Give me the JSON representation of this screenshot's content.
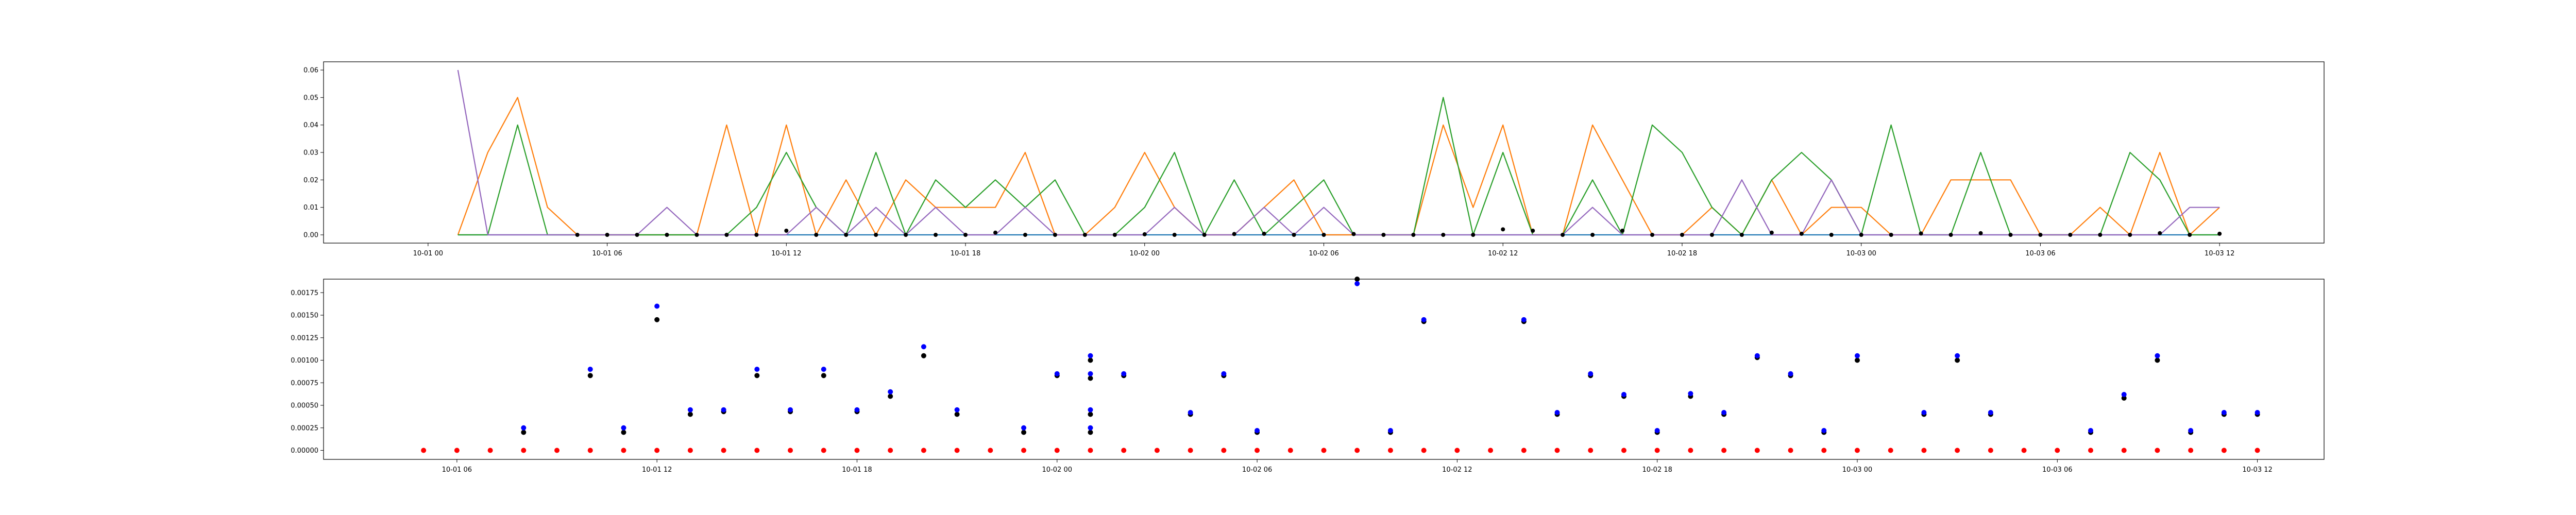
{
  "chart_data": [
    {
      "type": "line",
      "title": "",
      "xlabel": "",
      "ylabel": "",
      "x_format": "MM-DD HH",
      "xlim": [
        "09-30 20:30",
        "10-03 15:30"
      ],
      "ylim": [
        -0.003,
        0.063
      ],
      "grid": false,
      "x_ticks": [
        {
          "label": "10-01 00",
          "t": "10-01 00:00"
        },
        {
          "label": "10-01 06",
          "t": "10-01 06:00"
        },
        {
          "label": "10-01 12",
          "t": "10-01 12:00"
        },
        {
          "label": "10-01 18",
          "t": "10-01 18:00"
        },
        {
          "label": "10-02 00",
          "t": "10-02 00:00"
        },
        {
          "label": "10-02 06",
          "t": "10-02 06:00"
        },
        {
          "label": "10-02 12",
          "t": "10-02 12:00"
        },
        {
          "label": "10-02 18",
          "t": "10-02 18:00"
        },
        {
          "label": "10-03 00",
          "t": "10-03 00:00"
        },
        {
          "label": "10-03 06",
          "t": "10-03 06:00"
        },
        {
          "label": "10-03 12",
          "t": "10-03 12:00"
        }
      ],
      "y_ticks": [
        {
          "label": "0.00",
          "v": 0.0
        },
        {
          "label": "0.01",
          "v": 0.01
        },
        {
          "label": "0.02",
          "v": 0.02
        },
        {
          "label": "0.03",
          "v": 0.03
        },
        {
          "label": "0.04",
          "v": 0.04
        },
        {
          "label": "0.05",
          "v": 0.05
        },
        {
          "label": "0.06",
          "v": 0.06
        }
      ],
      "x": [
        "10-01 01:00",
        "10-01 02:00",
        "10-01 03:00",
        "10-01 04:00",
        "10-01 05:00",
        "10-01 06:00",
        "10-01 07:00",
        "10-01 08:00",
        "10-01 09:00",
        "10-01 10:00",
        "10-01 11:00",
        "10-01 12:00",
        "10-01 13:00",
        "10-01 14:00",
        "10-01 15:00",
        "10-01 16:00",
        "10-01 17:00",
        "10-01 18:00",
        "10-01 19:00",
        "10-01 20:00",
        "10-01 21:00",
        "10-01 22:00",
        "10-01 23:00",
        "10-02 00:00",
        "10-02 01:00",
        "10-02 02:00",
        "10-02 03:00",
        "10-02 04:00",
        "10-02 05:00",
        "10-02 06:00",
        "10-02 07:00",
        "10-02 08:00",
        "10-02 09:00",
        "10-02 10:00",
        "10-02 11:00",
        "10-02 12:00",
        "10-02 13:00",
        "10-02 14:00",
        "10-02 15:00",
        "10-02 16:00",
        "10-02 17:00",
        "10-02 18:00",
        "10-02 19:00",
        "10-02 20:00",
        "10-02 21:00",
        "10-02 22:00",
        "10-02 23:00",
        "10-03 00:00",
        "10-03 01:00",
        "10-03 02:00",
        "10-03 03:00",
        "10-03 04:00",
        "10-03 05:00",
        "10-03 06:00",
        "10-03 07:00",
        "10-03 08:00",
        "10-03 09:00",
        "10-03 10:00",
        "10-03 11:00",
        "10-03 12:00"
      ],
      "series": [
        {
          "color": "#1f77b4",
          "kind": "line",
          "values": [
            0,
            0,
            0,
            0,
            0,
            0,
            0,
            0,
            0,
            0,
            0,
            0,
            0,
            0,
            0,
            0,
            0,
            0,
            0,
            0,
            0,
            0,
            0,
            0,
            0,
            0,
            0,
            0,
            0,
            0,
            0,
            0,
            0,
            0,
            0,
            0,
            0,
            0,
            0,
            0,
            0,
            0,
            0,
            0,
            0,
            0,
            0,
            0,
            0,
            0,
            0,
            0,
            0,
            0,
            0,
            0,
            0,
            0,
            0,
            0
          ]
        },
        {
          "color": "#ff7f0e",
          "kind": "line",
          "values": [
            0,
            0.03,
            0.05,
            0.01,
            0,
            0,
            0,
            0,
            0,
            0.04,
            0,
            0.04,
            0,
            0.02,
            0,
            0.02,
            0.01,
            0.01,
            0.01,
            0.03,
            0,
            0,
            0.01,
            0.03,
            0.01,
            0,
            0,
            0.01,
            0.02,
            0,
            0,
            0,
            0,
            0.04,
            0.01,
            0.04,
            0,
            0,
            0.04,
            0.02,
            0,
            0,
            0.01,
            0,
            0.02,
            0,
            0.01,
            0.01,
            0,
            0,
            0.02,
            0.02,
            0.02,
            0,
            0,
            0.01,
            0,
            0.03,
            0,
            0.01
          ]
        },
        {
          "color": "#2ca02c",
          "kind": "line",
          "values": [
            0,
            0,
            0.04,
            0,
            0,
            0,
            0,
            0,
            0,
            0,
            0.01,
            0.03,
            0.01,
            0,
            0.03,
            0,
            0.02,
            0.01,
            0.02,
            0.01,
            0.02,
            0,
            0,
            0.01,
            0.03,
            0,
            0.02,
            0,
            0.01,
            0.02,
            0,
            0,
            0,
            0.05,
            0,
            0.03,
            0,
            0,
            0.02,
            0,
            0.04,
            0.03,
            0.01,
            0,
            0.02,
            0.03,
            0.02,
            0,
            0.04,
            0,
            0,
            0.03,
            0,
            0,
            0,
            0,
            0.03,
            0.02,
            0,
            0
          ]
        },
        {
          "color": "#9467bd",
          "kind": "line",
          "values": [
            0.06,
            0,
            0,
            0,
            0,
            0,
            0,
            0.01,
            0,
            0,
            0,
            0,
            0.01,
            0,
            0.01,
            0,
            0.01,
            0,
            0,
            0.01,
            0,
            0,
            0,
            0,
            0.01,
            0,
            0,
            0.01,
            0,
            0.01,
            0,
            0,
            0,
            0,
            0,
            0,
            0,
            0,
            0.01,
            0,
            0,
            0,
            0,
            0.02,
            0,
            0,
            0.02,
            0,
            0,
            0,
            0,
            0,
            0,
            0,
            0,
            0,
            0,
            0,
            0.01,
            0.01
          ]
        },
        {
          "color": "#000000",
          "kind": "marker",
          "marker_size": 4,
          "x": [
            "10-01 05:00",
            "10-01 06:00",
            "10-01 07:00",
            "10-01 08:00",
            "10-01 09:00",
            "10-01 10:00",
            "10-01 11:00",
            "10-01 12:00",
            "10-01 13:00",
            "10-01 14:00",
            "10-01 15:00",
            "10-01 16:00",
            "10-01 17:00",
            "10-01 18:00",
            "10-01 19:00",
            "10-01 20:00",
            "10-01 21:00",
            "10-01 22:00",
            "10-01 23:00",
            "10-02 00:00",
            "10-02 01:00",
            "10-02 02:00",
            "10-02 03:00",
            "10-02 04:00",
            "10-02 05:00",
            "10-02 06:00",
            "10-02 07:00",
            "10-02 08:00",
            "10-02 09:00",
            "10-02 10:00",
            "10-02 11:00",
            "10-02 12:00",
            "10-02 13:00",
            "10-02 14:00",
            "10-02 15:00",
            "10-02 16:00",
            "10-02 17:00",
            "10-02 18:00",
            "10-02 19:00",
            "10-02 20:00",
            "10-02 21:00",
            "10-02 22:00",
            "10-02 23:00",
            "10-03 00:00",
            "10-03 01:00",
            "10-03 02:00",
            "10-03 03:00",
            "10-03 04:00",
            "10-03 05:00",
            "10-03 06:00",
            "10-03 07:00",
            "10-03 08:00",
            "10-03 09:00",
            "10-03 10:00",
            "10-03 11:00",
            "10-03 12:00"
          ],
          "values": [
            0,
            0,
            0,
            0,
            0,
            0,
            0,
            0.0015,
            0,
            0,
            0,
            0,
            0,
            0,
            0.0008,
            0,
            0,
            0,
            0,
            0.0002,
            0,
            0,
            0.0003,
            0.0004,
            0,
            0,
            0.0003,
            0,
            0,
            0,
            0,
            0.002,
            0.0015,
            0,
            0,
            0.0015,
            0,
            0,
            0,
            0,
            0.0008,
            0.0004,
            0,
            0,
            0,
            0.0005,
            0,
            0.0006,
            0,
            0,
            0,
            0,
            0,
            0.0006,
            0,
            0.0004
          ]
        }
      ]
    },
    {
      "type": "scatter",
      "title": "",
      "xlabel": "",
      "ylabel": "",
      "x_format": "MM-DD HH",
      "xlim": [
        "10-01 02:00",
        "10-03 14:00"
      ],
      "ylim": [
        -0.0001,
        0.0019
      ],
      "grid": false,
      "x_ticks": [
        {
          "label": "10-01 06",
          "t": "10-01 06:00"
        },
        {
          "label": "10-01 12",
          "t": "10-01 12:00"
        },
        {
          "label": "10-01 18",
          "t": "10-01 18:00"
        },
        {
          "label": "10-02 00",
          "t": "10-02 00:00"
        },
        {
          "label": "10-02 06",
          "t": "10-02 06:00"
        },
        {
          "label": "10-02 12",
          "t": "10-02 12:00"
        },
        {
          "label": "10-02 18",
          "t": "10-02 18:00"
        },
        {
          "label": "10-03 00",
          "t": "10-03 00:00"
        },
        {
          "label": "10-03 06",
          "t": "10-03 06:00"
        },
        {
          "label": "10-03 12",
          "t": "10-03 12:00"
        }
      ],
      "y_ticks": [
        {
          "label": "0.00000",
          "v": 0
        },
        {
          "label": "0.00025",
          "v": 0.00025
        },
        {
          "label": "0.00050",
          "v": 0.0005
        },
        {
          "label": "0.00075",
          "v": 0.00075
        },
        {
          "label": "0.00100",
          "v": 0.001
        },
        {
          "label": "0.00125",
          "v": 0.00125
        },
        {
          "label": "0.00150",
          "v": 0.0015
        },
        {
          "label": "0.00175",
          "v": 0.00175
        }
      ],
      "series": [
        {
          "color": "#ff0000",
          "kind": "marker",
          "marker_size": 5,
          "x": [
            "10-01 05:00",
            "10-01 06:00",
            "10-01 07:00",
            "10-01 08:00",
            "10-01 09:00",
            "10-01 10:00",
            "10-01 11:00",
            "10-01 12:00",
            "10-01 13:00",
            "10-01 14:00",
            "10-01 15:00",
            "10-01 16:00",
            "10-01 17:00",
            "10-01 18:00",
            "10-01 19:00",
            "10-01 20:00",
            "10-01 21:00",
            "10-01 22:00",
            "10-01 23:00",
            "10-02 00:00",
            "10-02 01:00",
            "10-02 02:00",
            "10-02 03:00",
            "10-02 04:00",
            "10-02 05:00",
            "10-02 06:00",
            "10-02 07:00",
            "10-02 08:00",
            "10-02 09:00",
            "10-02 10:00",
            "10-02 11:00",
            "10-02 12:00",
            "10-02 13:00",
            "10-02 14:00",
            "10-02 15:00",
            "10-02 16:00",
            "10-02 17:00",
            "10-02 18:00",
            "10-02 19:00",
            "10-02 20:00",
            "10-02 21:00",
            "10-02 22:00",
            "10-02 23:00",
            "10-03 00:00",
            "10-03 01:00",
            "10-03 02:00",
            "10-03 03:00",
            "10-03 04:00",
            "10-03 05:00",
            "10-03 06:00",
            "10-03 07:00",
            "10-03 08:00",
            "10-03 09:00",
            "10-03 10:00",
            "10-03 11:00",
            "10-03 12:00"
          ],
          "values": [
            0,
            0,
            0,
            0,
            0,
            0,
            0,
            0,
            0,
            0,
            0,
            0,
            0,
            0,
            0,
            0,
            0,
            0,
            0,
            0,
            0,
            0,
            0,
            0,
            0,
            0,
            0,
            0,
            0,
            0,
            0,
            0,
            0,
            0,
            0,
            0,
            0,
            0,
            0,
            0,
            0,
            0,
            0,
            0,
            0,
            0,
            0,
            0,
            0,
            0,
            0,
            0,
            0,
            0,
            0,
            0
          ]
        },
        {
          "color": "#000000",
          "kind": "marker",
          "marker_size": 5,
          "x": [
            "10-01 08:00",
            "10-01 10:00",
            "10-01 11:00",
            "10-01 12:00",
            "10-01 13:00",
            "10-01 14:00",
            "10-01 15:00",
            "10-01 16:00",
            "10-01 17:00",
            "10-01 18:00",
            "10-01 19:00",
            "10-01 20:00",
            "10-01 21:00",
            "10-01 23:00",
            "10-02 00:00",
            "10-02 01:00",
            "10-02 01:00",
            "10-02 01:00",
            "10-02 01:00",
            "10-02 02:00",
            "10-02 04:00",
            "10-02 05:00",
            "10-02 06:00",
            "10-02 09:00",
            "10-02 10:00",
            "10-02 11:00",
            "10-02 14:00",
            "10-02 15:00",
            "10-02 16:00",
            "10-02 17:00",
            "10-02 18:00",
            "10-02 19:00",
            "10-02 20:00",
            "10-02 21:00",
            "10-02 22:00",
            "10-02 23:00",
            "10-03 00:00",
            "10-03 02:00",
            "10-03 03:00",
            "10-03 04:00",
            "10-03 07:00",
            "10-03 08:00",
            "10-03 09:00",
            "10-03 10:00",
            "10-03 11:00",
            "10-03 12:00"
          ],
          "values": [
            0.0002,
            0.00083,
            0.0002,
            0.00145,
            0.0004,
            0.00043,
            0.00083,
            0.00043,
            0.00083,
            0.00043,
            0.0006,
            0.00105,
            0.0004,
            0.0002,
            0.00083,
            0.001,
            0.0008,
            0.0004,
            0.0002,
            0.00083,
            0.0004,
            0.00083,
            0.0002,
            0.0019,
            0.0002,
            0.00143,
            0.00143,
            0.0004,
            0.00083,
            0.0006,
            0.0002,
            0.0006,
            0.0004,
            0.00103,
            0.00083,
            0.0002,
            0.001,
            0.0004,
            0.001,
            0.0004,
            0.0002,
            0.00058,
            0.001,
            0.0002,
            0.0004,
            0.0004
          ]
        },
        {
          "color": "#0000ff",
          "kind": "marker",
          "marker_size": 5,
          "x": [
            "10-01 08:00",
            "10-01 10:00",
            "10-01 11:00",
            "10-01 12:00",
            "10-01 13:00",
            "10-01 14:00",
            "10-01 15:00",
            "10-01 16:00",
            "10-01 17:00",
            "10-01 18:00",
            "10-01 19:00",
            "10-01 20:00",
            "10-01 21:00",
            "10-01 23:00",
            "10-02 00:00",
            "10-02 01:00",
            "10-02 01:00",
            "10-02 01:00",
            "10-02 01:00",
            "10-02 02:00",
            "10-02 04:00",
            "10-02 05:00",
            "10-02 06:00",
            "10-02 09:00",
            "10-02 10:00",
            "10-02 11:00",
            "10-02 14:00",
            "10-02 15:00",
            "10-02 16:00",
            "10-02 17:00",
            "10-02 18:00",
            "10-02 19:00",
            "10-02 20:00",
            "10-02 21:00",
            "10-02 22:00",
            "10-02 23:00",
            "10-03 00:00",
            "10-03 02:00",
            "10-03 03:00",
            "10-03 04:00",
            "10-03 07:00",
            "10-03 08:00",
            "10-03 09:00",
            "10-03 10:00",
            "10-03 11:00",
            "10-03 12:00"
          ],
          "values": [
            0.00025,
            0.0009,
            0.00025,
            0.0016,
            0.00045,
            0.00045,
            0.0009,
            0.00045,
            0.0009,
            0.00045,
            0.00065,
            0.00115,
            0.00045,
            0.00025,
            0.00085,
            0.00105,
            0.00085,
            0.00045,
            0.00025,
            0.00085,
            0.00042,
            0.00085,
            0.00022,
            0.00185,
            0.00022,
            0.00145,
            0.00145,
            0.00042,
            0.00085,
            0.00062,
            0.00022,
            0.00063,
            0.00042,
            0.00105,
            0.00085,
            0.00022,
            0.00105,
            0.00042,
            0.00105,
            0.00042,
            0.00022,
            0.00062,
            0.00105,
            0.00022,
            0.00042,
            0.00042
          ]
        }
      ]
    }
  ]
}
